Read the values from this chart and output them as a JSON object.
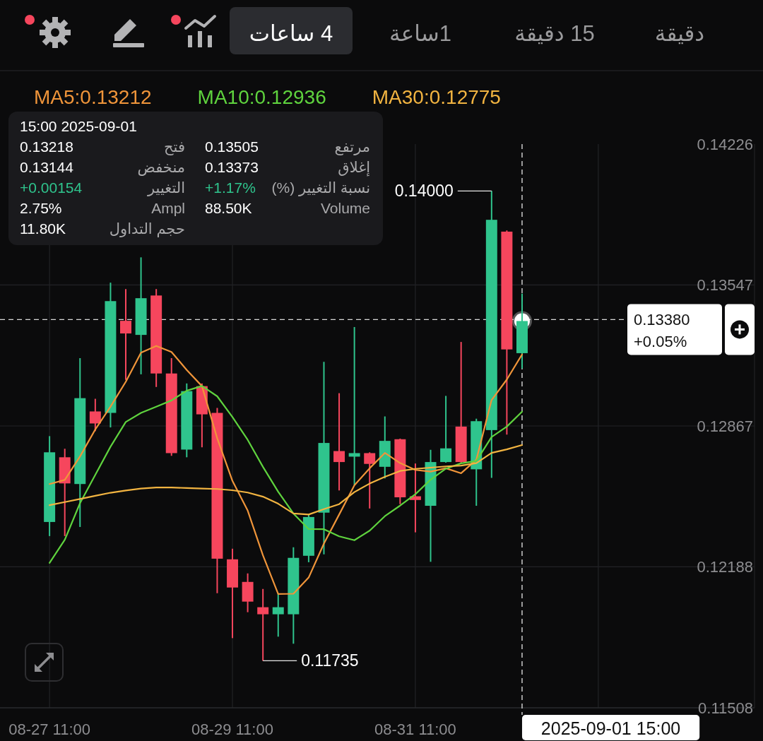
{
  "chart_data": {
    "type": "candlestick",
    "x": [
      "2025-08-27T11:00",
      "2025-08-27T15:00",
      "2025-08-27T19:00",
      "2025-08-27T23:00",
      "2025-08-28T03:00",
      "2025-08-28T07:00",
      "2025-08-28T11:00",
      "2025-08-28T15:00",
      "2025-08-28T19:00",
      "2025-08-28T23:00",
      "2025-08-29T03:00",
      "2025-08-29T07:00",
      "2025-08-29T11:00",
      "2025-08-29T15:00",
      "2025-08-29T19:00",
      "2025-08-29T23:00",
      "2025-08-30T03:00",
      "2025-08-30T07:00",
      "2025-08-30T11:00",
      "2025-08-30T15:00",
      "2025-08-30T19:00",
      "2025-08-30T23:00",
      "2025-08-31T03:00",
      "2025-08-31T07:00",
      "2025-08-31T11:00",
      "2025-08-31T15:00",
      "2025-08-31T19:00",
      "2025-08-31T23:00",
      "2025-09-01T03:00",
      "2025-09-01T07:00",
      "2025-09-01T11:00",
      "2025-09-01T15:00"
    ],
    "ohlc": [
      [
        0.12404,
        0.12818,
        0.12336,
        0.1274
      ],
      [
        0.12716,
        0.12757,
        0.12336,
        0.1259
      ],
      [
        0.12587,
        0.13194,
        0.1238,
        0.13001
      ],
      [
        0.12937,
        0.12998,
        0.12842,
        0.12879
      ],
      [
        0.1293,
        0.13558,
        0.1286,
        0.13469
      ],
      [
        0.13374,
        0.13527,
        0.13089,
        0.13313
      ],
      [
        0.13306,
        0.1368,
        0.13116,
        0.13483
      ],
      [
        0.13496,
        0.13527,
        0.13055,
        0.1312
      ],
      [
        0.1312,
        0.13194,
        0.12723,
        0.12736
      ],
      [
        0.12753,
        0.13072,
        0.12716,
        0.13035
      ],
      [
        0.13059,
        0.13072,
        0.12764,
        0.12923
      ],
      [
        0.1293,
        0.12954,
        0.12061,
        0.12227
      ],
      [
        0.12224,
        0.12275,
        0.11844,
        0.12088
      ],
      [
        0.12115,
        0.12156,
        0.11969,
        0.1202
      ],
      [
        0.11993,
        0.12081,
        0.11735,
        0.11959
      ],
      [
        0.11959,
        0.12061,
        0.11851,
        0.11993
      ],
      [
        0.11959,
        0.12282,
        0.11817,
        0.12231
      ],
      [
        0.12241,
        0.1244,
        0.1221,
        0.12428
      ],
      [
        0.12449,
        0.13176,
        0.12248,
        0.12785
      ],
      [
        0.12746,
        0.13025,
        0.12556,
        0.12693
      ],
      [
        0.12719,
        0.13344,
        0.12581,
        0.12736
      ],
      [
        0.12736,
        0.1274,
        0.12469,
        0.12684
      ],
      [
        0.1267,
        0.12913,
        0.12614,
        0.12795
      ],
      [
        0.12803,
        0.12806,
        0.1249,
        0.12523
      ],
      [
        0.12528,
        0.12686,
        0.12354,
        0.1251
      ],
      [
        0.12482,
        0.12752,
        0.12212,
        0.12693
      ],
      [
        0.12693,
        0.13012,
        0.1269,
        0.12759
      ],
      [
        0.12864,
        0.13272,
        0.1269,
        0.12693
      ],
      [
        0.12658,
        0.12902,
        0.12482,
        0.1289
      ],
      [
        0.12847,
        0.14,
        0.12617,
        0.13861
      ],
      [
        0.13804,
        0.1381,
        0.12825,
        0.13236
      ],
      [
        0.13218,
        0.13505,
        0.13144,
        0.13373
      ]
    ],
    "colors": [
      "#2fc48d",
      "#f6465d",
      "#2fc48d",
      "#f6465d",
      "#2fc48d",
      "#f6465d",
      "#2fc48d",
      "#f6465d",
      "#f6465d",
      "#2fc48d",
      "#f6465d",
      "#f6465d",
      "#f6465d",
      "#f6465d",
      "#f6465d",
      "#2fc48d",
      "#2fc48d",
      "#2fc48d",
      "#2fc48d",
      "#f6465d",
      "#2fc48d",
      "#f6465d",
      "#2fc48d",
      "#f6465d",
      "#f6465d",
      "#2fc48d",
      "#2fc48d",
      "#f6465d",
      "#2fc48d",
      "#2fc48d",
      "#f6465d",
      "#2fc48d"
    ],
    "series": [
      {
        "name": "MA5:0.13212",
        "type": "line",
        "color": "#f0953a",
        "values": [
          0.12587,
          0.12607,
          0.1272,
          0.1285,
          0.1296,
          0.1308,
          0.1322,
          0.13253,
          0.13224,
          0.13137,
          0.13059,
          0.12808,
          0.12602,
          0.12459,
          0.12243,
          0.12057,
          0.12058,
          0.12136,
          0.123,
          0.1244,
          0.12581,
          0.12663,
          0.12737,
          0.12688,
          0.12655,
          0.12647,
          0.12663,
          0.12639,
          0.12704,
          0.12992,
          0.13091,
          0.13212
        ]
      },
      {
        "name": "MA10:0.12936",
        "type": "line",
        "color": "#5fd33e",
        "values": [
          0.12207,
          0.12318,
          0.12495,
          0.12631,
          0.12767,
          0.12886,
          0.1293,
          0.1296,
          0.1299,
          0.13037,
          0.1306,
          0.1301,
          0.1291,
          0.128,
          0.1267,
          0.1255,
          0.12445,
          0.1237,
          0.12369,
          0.12335,
          0.12316,
          0.12362,
          0.12432,
          0.12483,
          0.12538,
          0.12608,
          0.12661,
          0.12687,
          0.12698,
          0.12814,
          0.12864,
          0.12936
        ]
      },
      {
        "name": "MA30:0.12775",
        "type": "line",
        "color": "#f2b441",
        "values": [
          0.12485,
          0.125,
          0.12515,
          0.1253,
          0.12545,
          0.12556,
          0.12565,
          0.1257,
          0.1257,
          0.12568,
          0.12565,
          0.12563,
          0.12557,
          0.12546,
          0.12526,
          0.12492,
          0.12445,
          0.1244,
          0.12466,
          0.1249,
          0.12548,
          0.12589,
          0.12622,
          0.1265,
          0.1266,
          0.12666,
          0.12672,
          0.12676,
          0.12688,
          0.12737,
          0.12754,
          0.12775
        ]
      }
    ],
    "xlim": [
      "2025-08-26T22:00",
      "2025-09-04T04:00"
    ],
    "xticks": [
      {
        "value": "2025-08-27T11:00",
        "label": "08-27 11:00"
      },
      {
        "value": "2025-08-29T11:00",
        "label": "08-29 11:00"
      },
      {
        "value": "2025-08-31T11:00",
        "label": "08-31 11:00"
      },
      {
        "value": "2025-09-02T11:00",
        "label": null
      }
    ],
    "ylim": [
      0.11508,
      0.14226
    ],
    "yticks": [
      0.14226,
      0.13547,
      0.12867,
      0.12188,
      0.11508
    ],
    "grid": true,
    "legend": "top left",
    "ref_lines": [
      {
        "axis": "x",
        "value": "2025-09-01T15:00",
        "label": "2025-09-01 15:00",
        "line_style": "dashed",
        "color": "#d9d9d9"
      },
      {
        "axis": "y",
        "value": 0.1338,
        "label": "0.13380",
        "line_style": "dashed",
        "color": "#d9d9d9"
      }
    ],
    "annotations": [
      "4 ساعات",
      "1ساعة",
      "15 دقيقة",
      "دقيقة",
      "15:00 2025-09-01",
      "فتح",
      "0.13218",
      "مرتفع",
      "0.13505",
      "منخفض",
      "0.13144",
      "إغلاق",
      "0.13373",
      "التغيير",
      "+0.00154",
      "نسبة التغيير (%)",
      "+1.17%",
      "Ampl",
      "2.75%",
      "Volume",
      "88.50K",
      "حجم التداول",
      "11.80K",
      "+0.05%",
      {
        "text": "0.14000",
        "x": "2025-09-01T07:00",
        "y": 0.14
      },
      {
        "text": "0.11735",
        "x": "2025-08-29T19:00",
        "y": 0.11735
      }
    ]
  }
}
